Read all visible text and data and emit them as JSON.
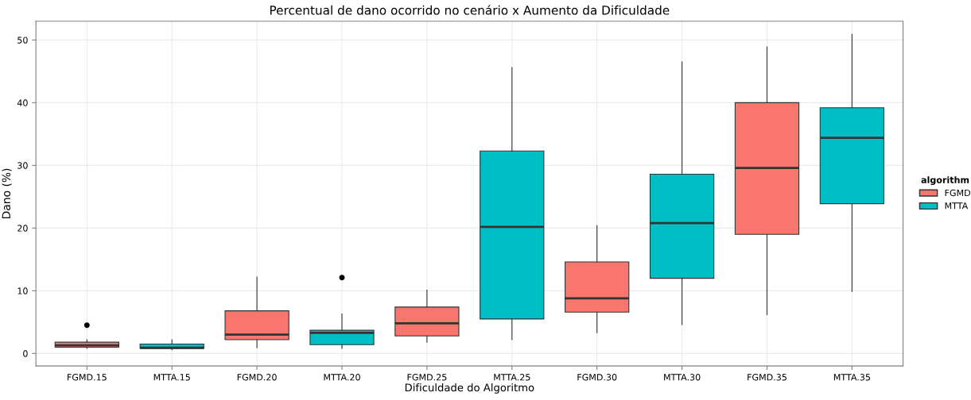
{
  "chart_data": {
    "type": "box",
    "title": "Percentual de dano ocorrido no cenário x Aumento da Dificuldade",
    "xlabel": "Dificuldade do Algoritmo",
    "ylabel": "Dano (%)",
    "legend_title": "algorithm",
    "categories": [
      "FGMD.15",
      "MTTA.15",
      "FGMD.20",
      "MTTA.20",
      "FGMD.25",
      "MTTA.25",
      "FGMD.30",
      "MTTA.30",
      "FGMD.35",
      "MTTA.35"
    ],
    "ylim": [
      -2,
      53
    ],
    "yticks": [
      0,
      10,
      20,
      30,
      40,
      50
    ],
    "grid": true,
    "legend": "right",
    "series": [
      {
        "name": "FGMD",
        "color": "#f8766d",
        "boxes": [
          {
            "low": 0.8,
            "q1": 1.0,
            "median": 1.3,
            "q3": 1.8,
            "high": 2.2,
            "outliers": [
              4.5
            ]
          },
          null,
          {
            "low": 0.9,
            "q1": 2.2,
            "median": 3.0,
            "q3": 6.8,
            "high": 12.2
          },
          null,
          {
            "low": 1.8,
            "q1": 2.8,
            "median": 4.8,
            "q3": 7.4,
            "high": 10.1
          },
          null,
          {
            "low": 3.3,
            "q1": 6.6,
            "median": 8.8,
            "q3": 14.6,
            "high": 20.4
          },
          null,
          {
            "low": 6.2,
            "q1": 19.0,
            "median": 29.6,
            "q3": 40.0,
            "high": 48.9
          },
          null
        ]
      },
      {
        "name": "MTTA",
        "color": "#00bfc4",
        "boxes": [
          null,
          {
            "low": 0.6,
            "q1": 0.8,
            "median": 0.9,
            "q3": 1.5,
            "high": 2.2
          },
          null,
          {
            "low": 0.8,
            "q1": 1.4,
            "median": 3.3,
            "q3": 3.7,
            "high": 6.3,
            "outliers": [
              12.1
            ]
          },
          null,
          {
            "low": 2.2,
            "q1": 5.5,
            "median": 20.2,
            "q3": 32.3,
            "high": 45.6
          },
          null,
          {
            "low": 4.6,
            "q1": 12.0,
            "median": 20.8,
            "q3": 28.6,
            "high": 46.5
          },
          null,
          {
            "low": 9.9,
            "q1": 23.9,
            "median": 34.4,
            "q3": 39.2,
            "high": 50.9
          }
        ]
      }
    ]
  }
}
